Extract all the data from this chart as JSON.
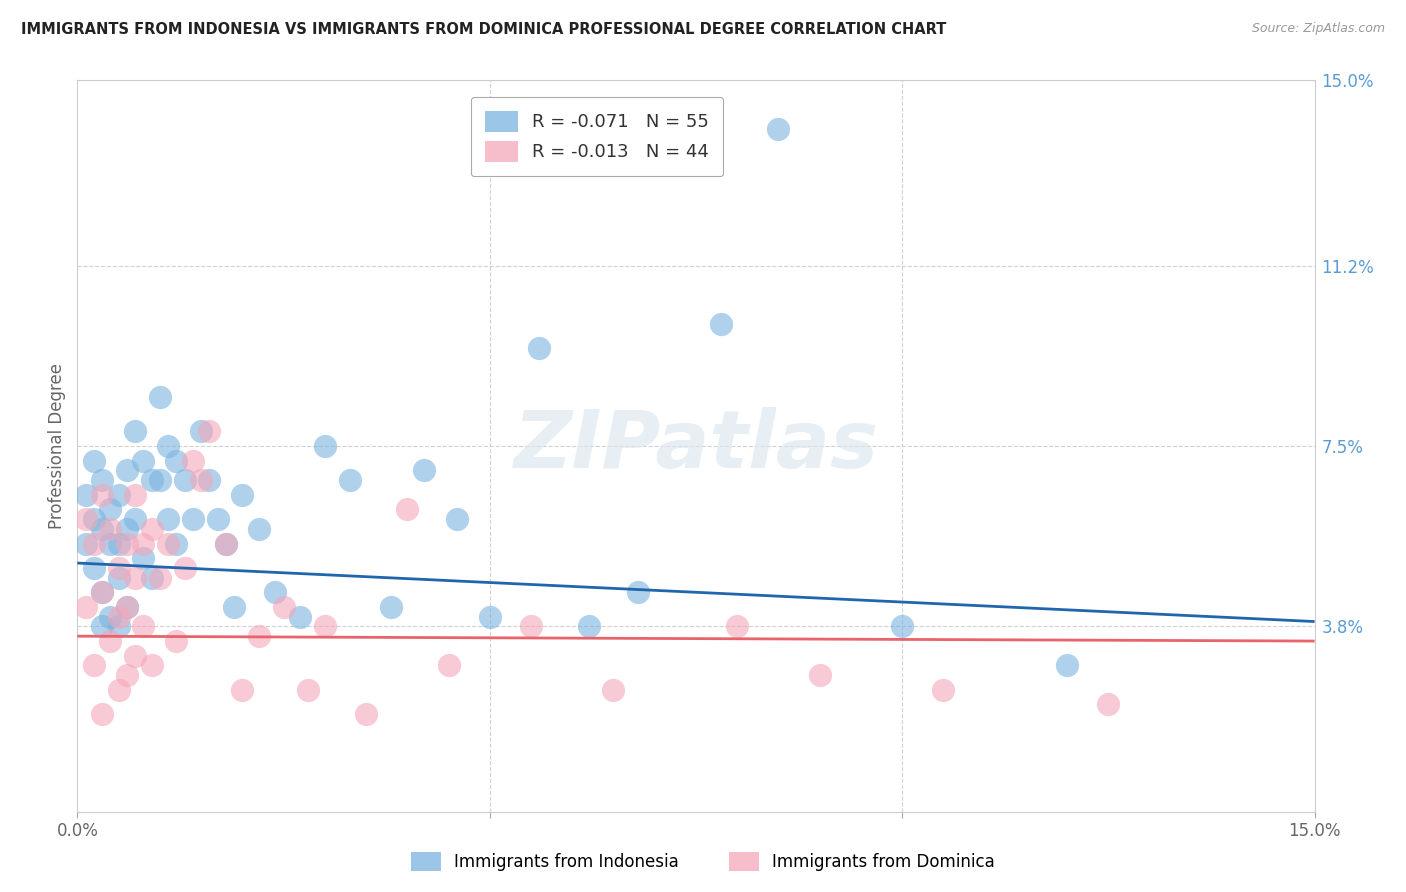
{
  "title": "IMMIGRANTS FROM INDONESIA VS IMMIGRANTS FROM DOMINICA PROFESSIONAL DEGREE CORRELATION CHART",
  "source": "Source: ZipAtlas.com",
  "ylabel": "Professional Degree",
  "x_min": 0.0,
  "x_max": 0.15,
  "y_min": 0.0,
  "y_max": 0.15,
  "y_tick_labels_right": [
    "15.0%",
    "11.2%",
    "7.5%",
    "3.8%"
  ],
  "y_tick_positions_right": [
    0.15,
    0.112,
    0.075,
    0.038
  ],
  "grid_color": "#cccccc",
  "background_color": "#ffffff",
  "indonesia_color": "#7ab3e0",
  "dominica_color": "#f4a7b9",
  "indonesia_trendline_color": "#2166ac",
  "dominica_trendline_color": "#e8636a",
  "watermark_text": "ZIPatlas",
  "legend_label_indonesia": "Immigrants from Indonesia",
  "legend_label_dominica": "Immigrants from Dominica",
  "legend_r_indo": "R = -0.071",
  "legend_n_indo": "N = 55",
  "legend_r_dom": "R = -0.013",
  "legend_n_dom": "N = 44",
  "indonesia_trendline_y0": 0.051,
  "indonesia_trendline_y1": 0.039,
  "dominica_trendline_y0": 0.036,
  "dominica_trendline_y1": 0.035,
  "indonesia_x": [
    0.001,
    0.001,
    0.002,
    0.002,
    0.002,
    0.003,
    0.003,
    0.003,
    0.003,
    0.004,
    0.004,
    0.004,
    0.005,
    0.005,
    0.005,
    0.005,
    0.006,
    0.006,
    0.006,
    0.007,
    0.007,
    0.008,
    0.008,
    0.009,
    0.009,
    0.01,
    0.01,
    0.011,
    0.011,
    0.012,
    0.012,
    0.013,
    0.014,
    0.015,
    0.016,
    0.017,
    0.018,
    0.019,
    0.02,
    0.022,
    0.024,
    0.027,
    0.03,
    0.033,
    0.038,
    0.042,
    0.046,
    0.05,
    0.056,
    0.062,
    0.068,
    0.078,
    0.085,
    0.1,
    0.12
  ],
  "indonesia_y": [
    0.065,
    0.055,
    0.072,
    0.06,
    0.05,
    0.068,
    0.058,
    0.045,
    0.038,
    0.062,
    0.055,
    0.04,
    0.065,
    0.055,
    0.048,
    0.038,
    0.07,
    0.058,
    0.042,
    0.078,
    0.06,
    0.072,
    0.052,
    0.068,
    0.048,
    0.085,
    0.068,
    0.075,
    0.06,
    0.072,
    0.055,
    0.068,
    0.06,
    0.078,
    0.068,
    0.06,
    0.055,
    0.042,
    0.065,
    0.058,
    0.045,
    0.04,
    0.075,
    0.068,
    0.042,
    0.07,
    0.06,
    0.04,
    0.095,
    0.038,
    0.045,
    0.1,
    0.14,
    0.038,
    0.03
  ],
  "dominica_x": [
    0.001,
    0.001,
    0.002,
    0.002,
    0.003,
    0.003,
    0.003,
    0.004,
    0.004,
    0.005,
    0.005,
    0.005,
    0.006,
    0.006,
    0.006,
    0.007,
    0.007,
    0.007,
    0.008,
    0.008,
    0.009,
    0.009,
    0.01,
    0.011,
    0.012,
    0.013,
    0.014,
    0.015,
    0.016,
    0.018,
    0.02,
    0.022,
    0.025,
    0.028,
    0.03,
    0.035,
    0.04,
    0.045,
    0.055,
    0.065,
    0.08,
    0.09,
    0.105,
    0.125
  ],
  "dominica_y": [
    0.06,
    0.042,
    0.055,
    0.03,
    0.065,
    0.045,
    0.02,
    0.058,
    0.035,
    0.05,
    0.04,
    0.025,
    0.055,
    0.042,
    0.028,
    0.065,
    0.048,
    0.032,
    0.055,
    0.038,
    0.058,
    0.03,
    0.048,
    0.055,
    0.035,
    0.05,
    0.072,
    0.068,
    0.078,
    0.055,
    0.025,
    0.036,
    0.042,
    0.025,
    0.038,
    0.02,
    0.062,
    0.03,
    0.038,
    0.025,
    0.038,
    0.028,
    0.025,
    0.022
  ]
}
